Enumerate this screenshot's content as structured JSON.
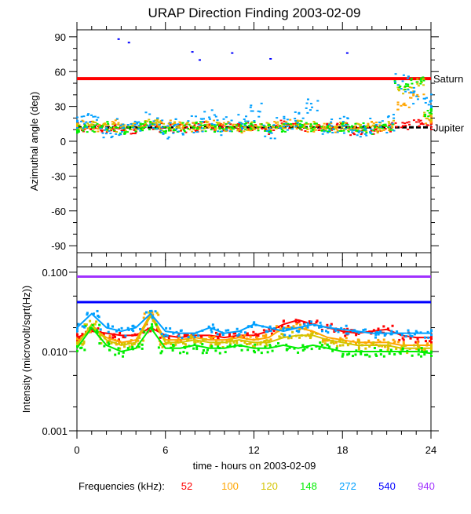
{
  "title": "URAP Direction Finding  2003-02-09",
  "xlabel": "time - hours on 2003-02-09",
  "legend_label": "Frequencies (kHz):",
  "chart_data": [
    {
      "type": "scatter",
      "ylabel": "Azimuthal angle (deg)",
      "xlim": [
        0,
        24
      ],
      "ylim": [
        -96,
        96
      ],
      "yticks": [
        90,
        60,
        30,
        0,
        -30,
        -60,
        -90
      ],
      "reference_lines": [
        {
          "name": "Saturn",
          "value": 54,
          "color": "#ff0000"
        },
        {
          "name": "Jupiter",
          "value": 12,
          "color": "#000000"
        }
      ],
      "series": [
        {
          "name": "52",
          "color": "#ff0000",
          "x": [
            0,
            1,
            2,
            3,
            4,
            5,
            6,
            7,
            8,
            9,
            10,
            11,
            12,
            13,
            14,
            15,
            16,
            17,
            18,
            19,
            20,
            21,
            22,
            23,
            24
          ],
          "y": [
            12,
            13,
            11,
            12,
            10,
            14,
            12,
            11,
            12,
            13,
            11,
            12,
            12,
            10,
            14,
            12,
            11,
            12,
            12,
            9,
            10,
            12,
            14,
            15,
            14
          ]
        },
        {
          "name": "100",
          "color": "#ffa500",
          "x": [
            0,
            1,
            2,
            3,
            4,
            5,
            6,
            7,
            8,
            9,
            10,
            11,
            12,
            13,
            14,
            15,
            16,
            17,
            18,
            19,
            20,
            21,
            22,
            23,
            24
          ],
          "y": [
            14,
            12,
            13,
            15,
            12,
            16,
            14,
            13,
            12,
            14,
            13,
            11,
            12,
            13,
            15,
            14,
            12,
            13,
            11,
            12,
            13,
            12,
            30,
            40,
            18
          ]
        },
        {
          "name": "120",
          "color": "#d4c400",
          "x": [
            0,
            1,
            2,
            3,
            4,
            5,
            6,
            7,
            8,
            9,
            10,
            11,
            12,
            13,
            14,
            15,
            16,
            17,
            18,
            19,
            20,
            21,
            22,
            23,
            24
          ],
          "y": [
            13,
            14,
            12,
            11,
            13,
            15,
            13,
            14,
            12,
            13,
            12,
            13,
            14,
            12,
            13,
            15,
            13,
            12,
            13,
            12,
            11,
            14,
            45,
            50,
            22
          ]
        },
        {
          "name": "148",
          "color": "#00ee00",
          "x": [
            0,
            1,
            2,
            3,
            4,
            5,
            6,
            7,
            8,
            9,
            10,
            11,
            12,
            13,
            14,
            15,
            16,
            17,
            18,
            19,
            20,
            21,
            22,
            23,
            24
          ],
          "y": [
            11,
            12,
            13,
            10,
            12,
            13,
            11,
            12,
            13,
            12,
            11,
            12,
            13,
            11,
            12,
            14,
            12,
            11,
            12,
            12,
            10,
            13,
            48,
            52,
            25
          ]
        },
        {
          "name": "272",
          "color": "#00a0ff",
          "x": [
            0,
            1,
            2,
            3,
            4,
            5,
            6,
            7,
            8,
            9,
            10,
            11,
            12,
            13,
            14,
            15,
            16,
            17,
            18,
            19,
            20,
            21,
            22,
            23,
            24
          ],
          "y": [
            15,
            20,
            5,
            12,
            15,
            18,
            10,
            12,
            14,
            20,
            13,
            16,
            25,
            10,
            15,
            18,
            30,
            12,
            14,
            10,
            12,
            15,
            50,
            40,
            35
          ]
        },
        {
          "name": "540",
          "color": "#0000ff",
          "x": [
            2.8,
            3.5,
            7.8,
            8.3,
            10.5,
            13.1,
            18.3
          ],
          "y": [
            88,
            85,
            77,
            70,
            76,
            71,
            76
          ]
        }
      ]
    },
    {
      "type": "scatter",
      "ylabel": "Intensity (microvolt/sqrt(Hz))",
      "xlim": [
        0,
        24
      ],
      "ylim": [
        0.001,
        0.117
      ],
      "yscale": "log",
      "yticks": [
        "0.100",
        "0.010",
        "0.001"
      ],
      "xticks": [
        "0",
        "6",
        "12",
        "18",
        "24"
      ],
      "series": [
        {
          "name": "52",
          "color": "#ff0000",
          "x": [
            0,
            1,
            2,
            3,
            4,
            5,
            6,
            7,
            8,
            9,
            10,
            11,
            12,
            13,
            14,
            15,
            16,
            17,
            18,
            19,
            20,
            21,
            22,
            23,
            24
          ],
          "y": [
            0.015,
            0.018,
            0.017,
            0.016,
            0.016,
            0.02,
            0.016,
            0.015,
            0.016,
            0.016,
            0.015,
            0.016,
            0.016,
            0.018,
            0.022,
            0.025,
            0.022,
            0.02,
            0.018,
            0.017,
            0.018,
            0.019,
            0.016,
            0.015,
            0.015
          ]
        },
        {
          "name": "100",
          "color": "#ffa500",
          "x": [
            0,
            1,
            2,
            3,
            4,
            5,
            6,
            7,
            8,
            9,
            10,
            11,
            12,
            13,
            14,
            15,
            16,
            17,
            18,
            19,
            20,
            21,
            22,
            23,
            24
          ],
          "y": [
            0.013,
            0.02,
            0.015,
            0.013,
            0.014,
            0.03,
            0.014,
            0.014,
            0.015,
            0.014,
            0.014,
            0.015,
            0.014,
            0.015,
            0.02,
            0.02,
            0.018,
            0.015,
            0.014,
            0.013,
            0.013,
            0.013,
            0.012,
            0.012,
            0.012
          ]
        },
        {
          "name": "120",
          "color": "#d4c400",
          "x": [
            0,
            1,
            2,
            3,
            4,
            5,
            6,
            7,
            8,
            9,
            10,
            11,
            12,
            13,
            14,
            15,
            16,
            17,
            18,
            19,
            20,
            21,
            22,
            23,
            24
          ],
          "y": [
            0.012,
            0.022,
            0.014,
            0.012,
            0.013,
            0.028,
            0.013,
            0.013,
            0.014,
            0.013,
            0.013,
            0.014,
            0.013,
            0.013,
            0.015,
            0.016,
            0.016,
            0.014,
            0.013,
            0.012,
            0.012,
            0.012,
            0.011,
            0.011,
            0.011
          ]
        },
        {
          "name": "148",
          "color": "#00ee00",
          "x": [
            0,
            1,
            2,
            3,
            4,
            5,
            6,
            7,
            8,
            9,
            10,
            11,
            12,
            13,
            14,
            15,
            16,
            17,
            18,
            19,
            20,
            21,
            22,
            23,
            24
          ],
          "y": [
            0.011,
            0.02,
            0.012,
            0.01,
            0.011,
            0.02,
            0.011,
            0.011,
            0.012,
            0.011,
            0.011,
            0.012,
            0.011,
            0.011,
            0.012,
            0.011,
            0.012,
            0.011,
            0.01,
            0.01,
            0.01,
            0.01,
            0.01,
            0.01,
            0.0095
          ]
        },
        {
          "name": "272",
          "color": "#00a0ff",
          "x": [
            0,
            1,
            2,
            3,
            4,
            5,
            6,
            7,
            8,
            9,
            10,
            11,
            12,
            13,
            14,
            15,
            16,
            17,
            18,
            19,
            20,
            21,
            22,
            23,
            24
          ],
          "y": [
            0.02,
            0.03,
            0.02,
            0.018,
            0.02,
            0.03,
            0.018,
            0.017,
            0.017,
            0.02,
            0.017,
            0.018,
            0.022,
            0.02,
            0.018,
            0.02,
            0.022,
            0.02,
            0.019,
            0.018,
            0.017,
            0.017,
            0.017,
            0.017,
            0.017
          ]
        },
        {
          "name": "540",
          "color": "#0000ff",
          "x": [
            0,
            24
          ],
          "y": [
            0.042,
            0.042
          ]
        },
        {
          "name": "940",
          "color": "#a030ff",
          "x": [
            0,
            24
          ],
          "y": [
            0.088,
            0.088
          ]
        }
      ]
    }
  ]
}
